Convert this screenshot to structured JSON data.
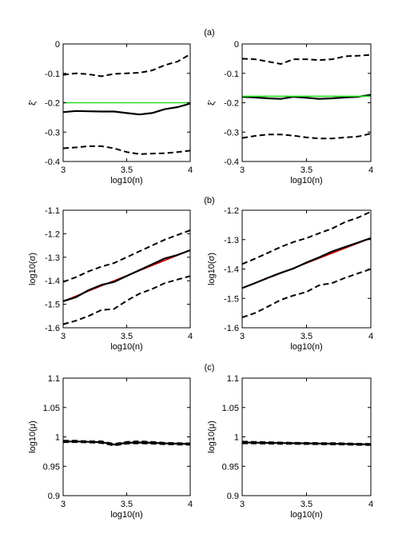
{
  "panel_labels": [
    "(a)",
    "(b)",
    "(c)"
  ],
  "chart_data": [
    {
      "type": "line",
      "panel": "(a)",
      "xlabel": "log10(n)",
      "ylabel": "ξ'",
      "xlim": [
        3,
        4
      ],
      "ylim": [
        -0.4,
        0
      ],
      "xticks": [
        "3",
        "3.5",
        "4"
      ],
      "yticks": [
        "-0.4",
        "-0.3",
        "-0.2",
        "-0.1",
        "0"
      ],
      "series": [
        {
          "style": "dashed",
          "color": "#000000",
          "x": [
            3,
            3.1,
            3.2,
            3.3,
            3.4,
            3.5,
            3.6,
            3.7,
            3.8,
            3.9,
            4
          ],
          "y": [
            -0.105,
            -0.1,
            -0.103,
            -0.11,
            -0.102,
            -0.1,
            -0.098,
            -0.09,
            -0.072,
            -0.06,
            -0.035
          ]
        },
        {
          "style": "solid",
          "color": "#000000",
          "x": [
            3,
            3.1,
            3.2,
            3.3,
            3.4,
            3.5,
            3.6,
            3.7,
            3.8,
            3.9,
            4
          ],
          "y": [
            -0.232,
            -0.228,
            -0.229,
            -0.23,
            -0.23,
            -0.235,
            -0.24,
            -0.235,
            -0.222,
            -0.215,
            -0.203
          ]
        },
        {
          "style": "solid",
          "color": "#22dd22",
          "x": [
            3,
            4
          ],
          "y": [
            -0.2,
            -0.2
          ]
        },
        {
          "style": "dashed",
          "color": "#000000",
          "x": [
            3,
            3.1,
            3.2,
            3.3,
            3.4,
            3.5,
            3.6,
            3.7,
            3.8,
            3.9,
            4
          ],
          "y": [
            -0.355,
            -0.352,
            -0.348,
            -0.348,
            -0.355,
            -0.368,
            -0.375,
            -0.373,
            -0.372,
            -0.368,
            -0.363
          ]
        }
      ]
    },
    {
      "type": "line",
      "panel": "(a)",
      "xlabel": "log10(n)",
      "ylabel": "ξ'",
      "xlim": [
        3,
        4
      ],
      "ylim": [
        -0.4,
        0
      ],
      "xticks": [
        "3",
        "3.5",
        "4"
      ],
      "yticks": [
        "-0.4",
        "-0.3",
        "-0.2",
        "-0.1",
        "0"
      ],
      "series": [
        {
          "style": "dashed",
          "color": "#000000",
          "x": [
            3,
            3.1,
            3.2,
            3.3,
            3.4,
            3.5,
            3.6,
            3.7,
            3.8,
            3.9,
            4
          ],
          "y": [
            -0.05,
            -0.052,
            -0.06,
            -0.068,
            -0.052,
            -0.052,
            -0.055,
            -0.052,
            -0.042,
            -0.04,
            -0.037
          ]
        },
        {
          "style": "solid",
          "color": "#000000",
          "x": [
            3,
            3.1,
            3.2,
            3.3,
            3.4,
            3.5,
            3.6,
            3.7,
            3.8,
            3.9,
            4
          ],
          "y": [
            -0.18,
            -0.182,
            -0.185,
            -0.187,
            -0.18,
            -0.183,
            -0.187,
            -0.185,
            -0.182,
            -0.18,
            -0.173
          ]
        },
        {
          "style": "solid",
          "color": "#22dd22",
          "x": [
            3,
            4
          ],
          "y": [
            -0.178,
            -0.178
          ]
        },
        {
          "style": "dashed",
          "color": "#000000",
          "x": [
            3,
            3.1,
            3.2,
            3.3,
            3.4,
            3.5,
            3.6,
            3.7,
            3.8,
            3.9,
            4
          ],
          "y": [
            -0.32,
            -0.313,
            -0.308,
            -0.308,
            -0.312,
            -0.318,
            -0.322,
            -0.322,
            -0.318,
            -0.315,
            -0.305
          ]
        }
      ]
    },
    {
      "type": "line",
      "panel": "(b)",
      "xlabel": "log10(n)",
      "ylabel": "log10(σ)",
      "xlim": [
        3,
        4
      ],
      "ylim": [
        -1.6,
        -1.1
      ],
      "xticks": [
        "3",
        "3.5",
        "4"
      ],
      "yticks": [
        "-1.6",
        "-1.5",
        "-1.4",
        "-1.3",
        "-1.2",
        "-1.1"
      ],
      "series": [
        {
          "style": "dashed",
          "color": "#000000",
          "x": [
            3,
            3.1,
            3.2,
            3.3,
            3.4,
            3.5,
            3.6,
            3.7,
            3.8,
            3.9,
            4
          ],
          "y": [
            -1.405,
            -1.385,
            -1.36,
            -1.34,
            -1.325,
            -1.3,
            -1.275,
            -1.25,
            -1.225,
            -1.205,
            -1.185
          ]
        },
        {
          "style": "solid",
          "color": "#cc0000",
          "x": [
            3,
            4
          ],
          "y": [
            -1.487,
            -1.27
          ]
        },
        {
          "style": "solid",
          "color": "#000000",
          "x": [
            3,
            3.1,
            3.2,
            3.3,
            3.4,
            3.5,
            3.6,
            3.7,
            3.8,
            3.9,
            4
          ],
          "y": [
            -1.487,
            -1.47,
            -1.44,
            -1.418,
            -1.405,
            -1.38,
            -1.355,
            -1.33,
            -1.305,
            -1.29,
            -1.27
          ]
        },
        {
          "style": "dashed",
          "color": "#000000",
          "x": [
            3,
            3.1,
            3.2,
            3.3,
            3.4,
            3.5,
            3.6,
            3.7,
            3.8,
            3.9,
            4
          ],
          "y": [
            -1.585,
            -1.57,
            -1.55,
            -1.525,
            -1.52,
            -1.485,
            -1.455,
            -1.435,
            -1.41,
            -1.395,
            -1.38
          ]
        }
      ]
    },
    {
      "type": "line",
      "panel": "(b)",
      "xlabel": "log10(n)",
      "ylabel": "log10(σ)",
      "xlim": [
        3,
        4
      ],
      "ylim": [
        -1.6,
        -1.2
      ],
      "xticks": [
        "3",
        "3.5",
        "4"
      ],
      "yticks": [
        "-1.6",
        "-1.5",
        "-1.4",
        "-1.3",
        "-1.2"
      ],
      "series": [
        {
          "style": "dashed",
          "color": "#000000",
          "x": [
            3,
            3.1,
            3.2,
            3.3,
            3.4,
            3.5,
            3.6,
            3.7,
            3.8,
            3.9,
            4
          ],
          "y": [
            -1.383,
            -1.365,
            -1.345,
            -1.325,
            -1.308,
            -1.295,
            -1.278,
            -1.262,
            -1.24,
            -1.225,
            -1.205
          ]
        },
        {
          "style": "solid",
          "color": "#cc0000",
          "x": [
            3,
            4
          ],
          "y": [
            -1.465,
            -1.295
          ]
        },
        {
          "style": "solid",
          "color": "#000000",
          "x": [
            3,
            3.1,
            3.2,
            3.3,
            3.4,
            3.5,
            3.6,
            3.7,
            3.8,
            3.9,
            4
          ],
          "y": [
            -1.465,
            -1.448,
            -1.43,
            -1.413,
            -1.398,
            -1.378,
            -1.36,
            -1.34,
            -1.325,
            -1.31,
            -1.295
          ]
        },
        {
          "style": "dashed",
          "color": "#000000",
          "x": [
            3,
            3.1,
            3.2,
            3.3,
            3.4,
            3.5,
            3.6,
            3.7,
            3.8,
            3.9,
            4
          ],
          "y": [
            -1.565,
            -1.55,
            -1.528,
            -1.505,
            -1.49,
            -1.478,
            -1.455,
            -1.448,
            -1.43,
            -1.415,
            -1.4
          ]
        }
      ]
    },
    {
      "type": "line",
      "panel": "(c)",
      "xlabel": "log10(n)",
      "ylabel": "log10(μ)",
      "xlim": [
        3,
        4
      ],
      "ylim": [
        0.9,
        1.1
      ],
      "xticks": [
        "3",
        "3.5",
        "4"
      ],
      "yticks": [
        "0.9",
        "0.95",
        "1",
        "1.05",
        "1.1"
      ],
      "series": [
        {
          "style": "dashed",
          "color": "#000000",
          "x": [
            3,
            3.1,
            3.2,
            3.3,
            3.4,
            3.5,
            3.6,
            3.7,
            3.8,
            3.9,
            4
          ],
          "y": [
            0.9935,
            0.9935,
            0.9925,
            0.9925,
            0.988,
            0.9915,
            0.9925,
            0.9915,
            0.99,
            0.9895,
            0.989
          ]
        },
        {
          "style": "solid",
          "color": "#000000",
          "x": [
            3,
            3.1,
            3.2,
            3.3,
            3.4,
            3.5,
            3.6,
            3.7,
            3.8,
            3.9,
            4
          ],
          "y": [
            0.992,
            0.9922,
            0.9915,
            0.991,
            0.987,
            0.99,
            0.9905,
            0.99,
            0.989,
            0.9885,
            0.988
          ]
        },
        {
          "style": "dashed",
          "color": "#000000",
          "x": [
            3,
            3.1,
            3.2,
            3.3,
            3.4,
            3.5,
            3.6,
            3.7,
            3.8,
            3.9,
            4
          ],
          "y": [
            0.991,
            0.991,
            0.9905,
            0.9895,
            0.9855,
            0.9885,
            0.989,
            0.9885,
            0.9875,
            0.987,
            0.9865
          ]
        }
      ]
    },
    {
      "type": "line",
      "panel": "(c)",
      "xlabel": "log10(n)",
      "ylabel": "log10(μ)",
      "xlim": [
        3,
        4
      ],
      "ylim": [
        0.9,
        1.1
      ],
      "xticks": [
        "3",
        "3.5",
        "4"
      ],
      "yticks": [
        "0.9",
        "0.95",
        "1",
        "1.05",
        "1.1"
      ],
      "series": [
        {
          "style": "dashed",
          "color": "#000000",
          "x": [
            3,
            3.1,
            3.2,
            3.3,
            3.4,
            3.5,
            3.6,
            3.7,
            3.8,
            3.9,
            4
          ],
          "y": [
            0.992,
            0.9915,
            0.991,
            0.9905,
            0.99,
            0.99,
            0.9895,
            0.9895,
            0.989,
            0.9885,
            0.988
          ]
        },
        {
          "style": "solid",
          "color": "#000000",
          "x": [
            3,
            3.1,
            3.2,
            3.3,
            3.4,
            3.5,
            3.6,
            3.7,
            3.8,
            3.9,
            4
          ],
          "y": [
            0.9905,
            0.9902,
            0.9898,
            0.9895,
            0.9892,
            0.989,
            0.9886,
            0.9884,
            0.988,
            0.9876,
            0.9872
          ]
        },
        {
          "style": "dashed",
          "color": "#000000",
          "x": [
            3,
            3.1,
            3.2,
            3.3,
            3.4,
            3.5,
            3.6,
            3.7,
            3.8,
            3.9,
            4
          ],
          "y": [
            0.989,
            0.9888,
            0.9885,
            0.9882,
            0.988,
            0.9878,
            0.9875,
            0.9872,
            0.9868,
            0.9864,
            0.986
          ]
        }
      ]
    }
  ]
}
